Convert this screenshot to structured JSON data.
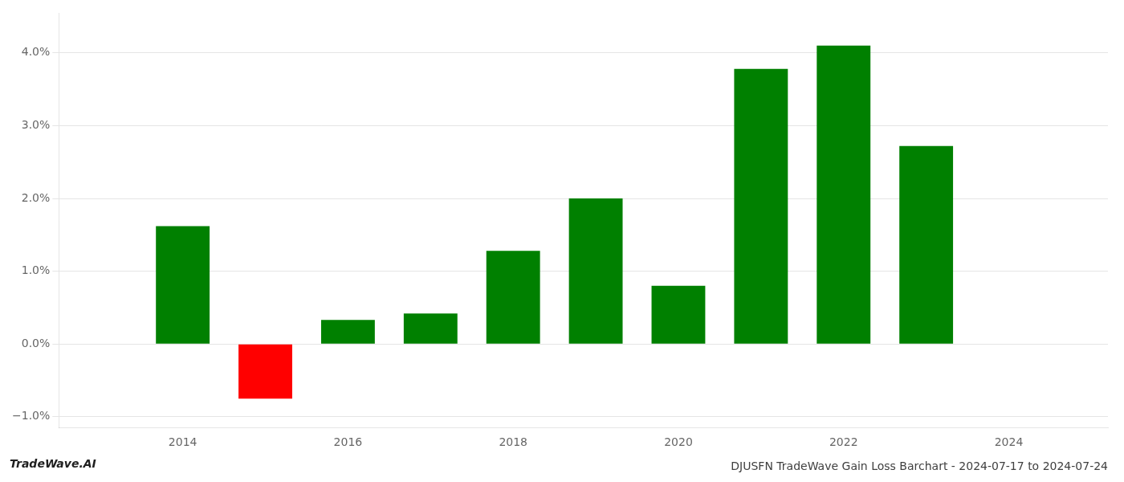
{
  "chart_data": {
    "type": "bar",
    "title": "DJUSFN TradeWave Gain Loss Barchart - 2024-07-17 to 2024-07-24",
    "annotations": [
      "TradeWave.AI"
    ],
    "x": [
      2014,
      2015,
      2016,
      2017,
      2018,
      2019,
      2020,
      2021,
      2022,
      2023
    ],
    "values": [
      0.0162,
      -0.0075,
      0.0033,
      0.0042,
      0.0128,
      0.02,
      0.008,
      0.0378,
      0.041,
      0.0272
    ],
    "colors": [
      "#008000",
      "#ff0000",
      "#008000",
      "#008000",
      "#008000",
      "#008000",
      "#008000",
      "#008000",
      "#008000",
      "#008000"
    ],
    "xlim": [
      2012.5,
      2025.2
    ],
    "xticks": [
      2014,
      2016,
      2018,
      2020,
      2022,
      2024
    ],
    "ylim": [
      -0.0115,
      0.0455
    ],
    "yticks": [
      {
        "value": -0.01,
        "label": "−1.0%"
      },
      {
        "value": 0.0,
        "label": "0.0%"
      },
      {
        "value": 0.01,
        "label": "1.0%"
      },
      {
        "value": 0.02,
        "label": "2.0%"
      },
      {
        "value": 0.03,
        "label": "3.0%"
      },
      {
        "value": 0.04,
        "label": "4.0%"
      }
    ],
    "grid": "y"
  }
}
